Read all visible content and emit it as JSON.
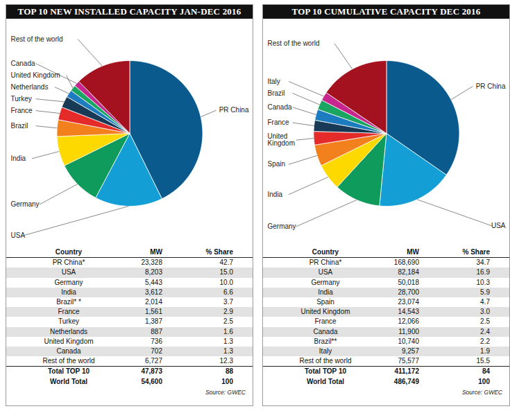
{
  "chart_data": [
    {
      "type": "pie",
      "title": "TOP 10 NEW INSTALLED CAPACITY JAN-DEC 2016",
      "categories": [
        "PR China",
        "USA",
        "Germany",
        "India",
        "Brazil",
        "France",
        "Turkey",
        "Netherlands",
        "United Kingdom",
        "Canada",
        "Rest of the world"
      ],
      "values": [
        23328,
        8203,
        5443,
        3612,
        2014,
        1561,
        1387,
        887,
        736,
        702,
        6727
      ],
      "colors": [
        "#0b5a8e",
        "#139fd6",
        "#0e9b5b",
        "#fdd900",
        "#f2811d",
        "#e52a2a",
        "#183a56",
        "#1d7cc0",
        "#1ba562",
        "#c7268f",
        "#a5121f"
      ],
      "table": {
        "columns": [
          "Country",
          "MW",
          "% Share"
        ],
        "rows": [
          [
            "PR China*",
            "23,328",
            "42.7"
          ],
          [
            "USA",
            "8,203",
            "15.0"
          ],
          [
            "Germany",
            "5,443",
            "10.0"
          ],
          [
            "India",
            "3,612",
            "6.6"
          ],
          [
            "Brazil* *",
            "2,014",
            "3.7"
          ],
          [
            "France",
            "1,561",
            "2.9"
          ],
          [
            "Turkey",
            "1,387",
            "2.5"
          ],
          [
            "Netherlands",
            "887",
            "1.6"
          ],
          [
            "United Kingdom",
            "736",
            "1.3"
          ],
          [
            "Canada",
            "702",
            "1.3"
          ],
          [
            "Rest of the world",
            "6,727",
            "12.3"
          ]
        ],
        "totals": [
          [
            "Total TOP 10",
            "47,873",
            "88"
          ],
          [
            "World Total",
            "54,600",
            "100"
          ]
        ]
      },
      "source": "Source: GWEC"
    },
    {
      "type": "pie",
      "title": "TOP 10 CUMULATIVE CAPACITY DEC 2016",
      "categories": [
        "PR China",
        "USA",
        "Germany",
        "India",
        "Spain",
        "United Kingdom",
        "France",
        "Canada",
        "Brazil",
        "Italy",
        "Rest of the world"
      ],
      "values": [
        168690,
        82184,
        50018,
        28700,
        23074,
        14543,
        12066,
        11900,
        10740,
        9257,
        75577
      ],
      "colors": [
        "#0b5a8e",
        "#139fd6",
        "#0e9b5b",
        "#fdd900",
        "#f2811d",
        "#e52a2a",
        "#183a56",
        "#1d7cc0",
        "#1ba562",
        "#c7268f",
        "#a5121f"
      ],
      "table": {
        "columns": [
          "Country",
          "MW",
          "% Share"
        ],
        "rows": [
          [
            "PR China*",
            "168,690",
            "34.7"
          ],
          [
            "USA",
            "82,184",
            "16.9"
          ],
          [
            "Germany",
            "50,018",
            "10.3"
          ],
          [
            "India",
            "28,700",
            "5.9"
          ],
          [
            "Spain",
            "23,074",
            "4.7"
          ],
          [
            "United Kingdom",
            "14,543",
            "3.0"
          ],
          [
            "France",
            "12,066",
            "2.5"
          ],
          [
            "Canada",
            "11,900",
            "2.4"
          ],
          [
            "Brazil**",
            "10,740",
            "2.2"
          ],
          [
            "Italy",
            "9,257",
            "1.9"
          ],
          [
            "Rest of the world",
            "75,577",
            "15.5"
          ]
        ],
        "totals": [
          [
            "Total TOP 10",
            "411,172",
            "84"
          ],
          [
            "World Total",
            "486,749",
            "100"
          ]
        ]
      },
      "source": "Source: GWEC"
    }
  ]
}
